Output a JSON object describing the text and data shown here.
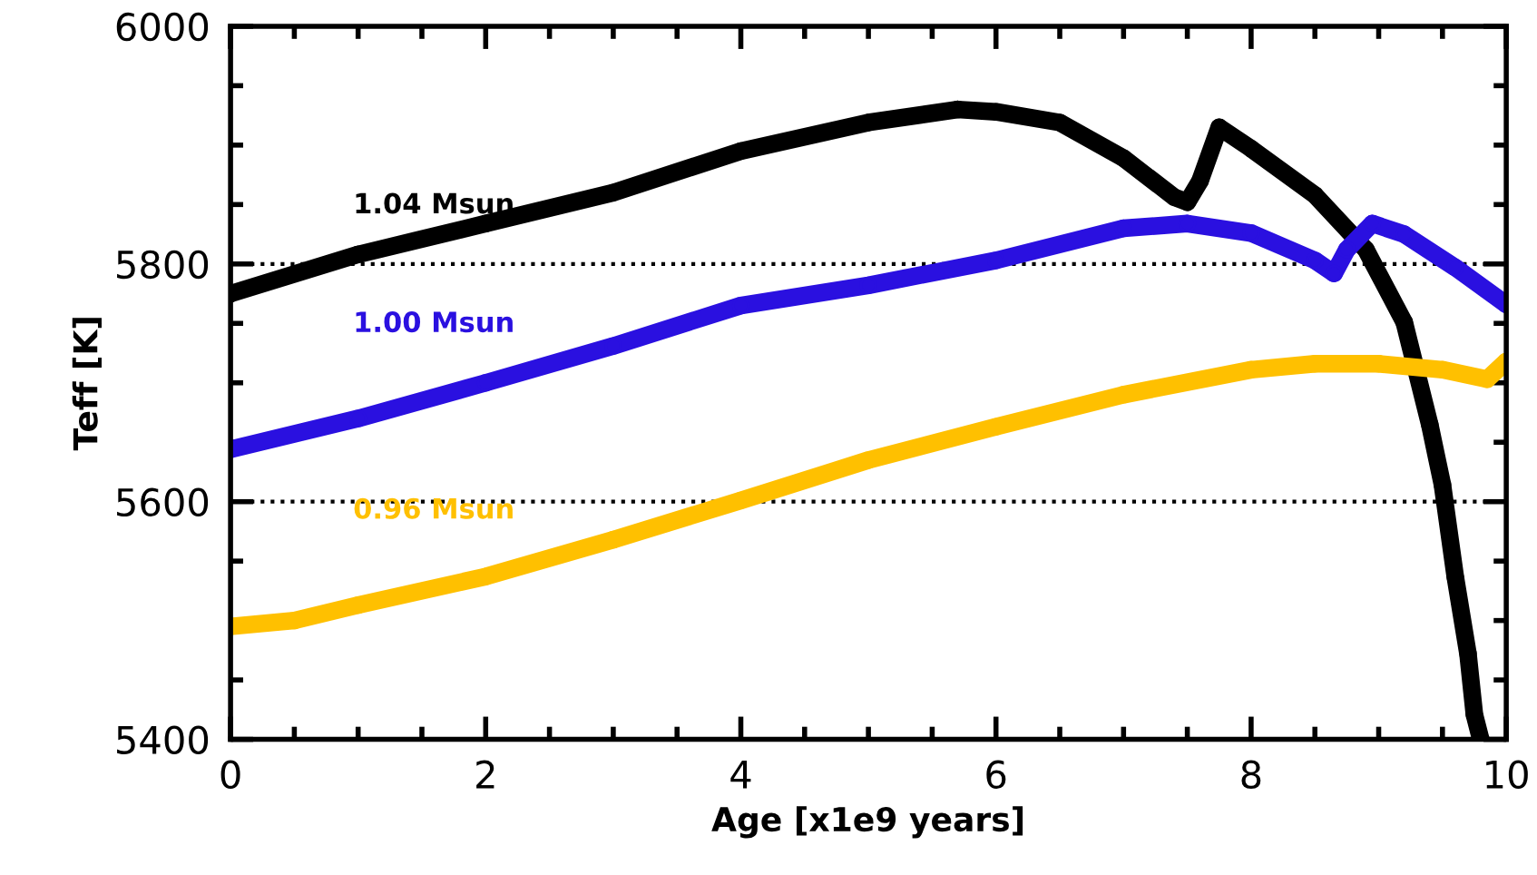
{
  "chart_data": {
    "type": "line",
    "xlabel": "Age [x1e9 years]",
    "ylabel": "Teff [K]",
    "xlim": [
      0,
      10
    ],
    "xticks": [
      0,
      2,
      4,
      6,
      8,
      10
    ],
    "ylim": [
      5400,
      6000
    ],
    "yticks": [
      5400,
      5600,
      5800,
      6000
    ],
    "grid": false,
    "legend": false,
    "marker": "circle",
    "line_style": "solid",
    "ref_lines": [
      {
        "axis": "y",
        "value": 5800,
        "line_style": "dotted",
        "color": "#000000"
      },
      {
        "axis": "y",
        "value": 5600,
        "line_style": "dotted",
        "color": "#000000"
      }
    ],
    "series": [
      {
        "name": "1.04 Msun",
        "color": "#000000",
        "x": [
          0,
          1,
          2,
          3,
          4,
          5,
          5.7,
          6,
          6.5,
          7,
          7.4,
          7.5,
          7.6,
          7.75,
          8,
          8.5,
          8.9,
          9.2,
          9.4,
          9.5,
          9.6,
          9.7,
          9.75,
          9.8
        ],
        "values": [
          5775,
          5808,
          5834,
          5860,
          5895,
          5919,
          5930,
          5928,
          5919,
          5889,
          5856,
          5852,
          5870,
          5915,
          5897,
          5858,
          5812,
          5751,
          5665,
          5614,
          5537,
          5472,
          5421,
          5400
        ]
      },
      {
        "name": "1.00 Msun",
        "color": "#2a10e0",
        "x": [
          0,
          1,
          2,
          3,
          4,
          5,
          6,
          7,
          7.5,
          8,
          8.5,
          8.65,
          8.75,
          8.95,
          9.2,
          9.6,
          10
        ],
        "values": [
          5644,
          5670,
          5700,
          5731,
          5765,
          5782,
          5803,
          5830,
          5834,
          5826,
          5803,
          5792,
          5812,
          5834,
          5825,
          5797,
          5766
        ]
      },
      {
        "name": "0.96 Msun",
        "color": "#ffc000",
        "x": [
          0,
          0.5,
          1,
          2,
          3,
          4,
          5,
          6,
          7,
          8,
          8.5,
          9,
          9.5,
          9.85,
          10
        ],
        "values": [
          5495,
          5500,
          5513,
          5537,
          5568,
          5601,
          5635,
          5663,
          5690,
          5711,
          5716,
          5716,
          5711,
          5703,
          5718
        ]
      }
    ]
  }
}
